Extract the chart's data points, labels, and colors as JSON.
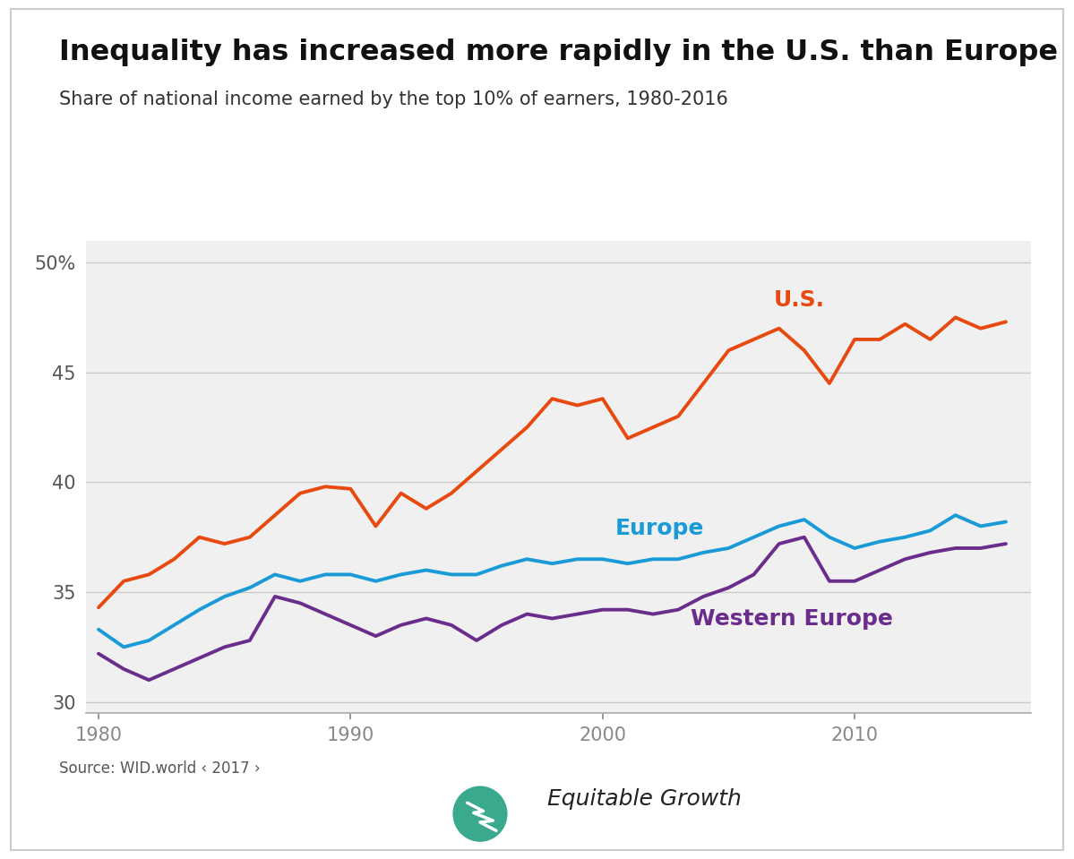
{
  "title": "Inequality has increased more rapidly in the U.S. than Europe",
  "subtitle": "Share of national income earned by the top 10% of earners, 1980-2016",
  "source": "Source: WID.world ‹ 2017 ›",
  "background_color": "#f0f0f0",
  "plot_bg_color": "#f0f0f0",
  "years": [
    1980,
    1981,
    1982,
    1983,
    1984,
    1985,
    1986,
    1987,
    1988,
    1989,
    1990,
    1991,
    1992,
    1993,
    1994,
    1995,
    1996,
    1997,
    1998,
    1999,
    2000,
    2001,
    2002,
    2003,
    2004,
    2005,
    2006,
    2007,
    2008,
    2009,
    2010,
    2011,
    2012,
    2013,
    2014,
    2015,
    2016
  ],
  "us": [
    34.3,
    35.5,
    35.8,
    36.5,
    37.5,
    37.2,
    37.5,
    38.5,
    39.5,
    39.8,
    39.7,
    38.0,
    39.5,
    38.8,
    39.5,
    40.5,
    41.5,
    42.5,
    43.8,
    43.5,
    43.8,
    42.0,
    42.5,
    43.0,
    44.5,
    46.0,
    46.5,
    47.0,
    46.0,
    44.5,
    46.5,
    46.5,
    47.2,
    46.5,
    47.5,
    47.0,
    47.3
  ],
  "europe": [
    33.3,
    32.5,
    32.8,
    33.5,
    34.2,
    34.8,
    35.2,
    35.8,
    35.5,
    35.8,
    35.8,
    35.5,
    35.8,
    36.0,
    35.8,
    35.8,
    36.2,
    36.5,
    36.3,
    36.5,
    36.5,
    36.3,
    36.5,
    36.5,
    36.8,
    37.0,
    37.5,
    38.0,
    38.3,
    37.5,
    37.0,
    37.3,
    37.5,
    37.8,
    38.5,
    38.0,
    38.2
  ],
  "western_europe": [
    32.2,
    31.5,
    31.0,
    31.5,
    32.0,
    32.5,
    32.8,
    34.8,
    34.5,
    34.0,
    33.5,
    33.0,
    33.5,
    33.8,
    33.5,
    32.8,
    33.5,
    34.0,
    33.8,
    34.0,
    34.2,
    34.2,
    34.0,
    34.2,
    34.8,
    35.2,
    35.8,
    37.2,
    37.5,
    35.5,
    35.5,
    36.0,
    36.5,
    36.8,
    37.0,
    37.0,
    37.2
  ],
  "us_color": "#e8490f",
  "europe_color": "#1a9bd7",
  "western_europe_color": "#6b2d8b",
  "ylim": [
    29.5,
    51
  ],
  "yticks": [
    30,
    35,
    40,
    45,
    50
  ],
  "xlim": [
    1979.5,
    2017
  ],
  "xticks": [
    1980,
    1990,
    2000,
    2010
  ],
  "title_fontsize": 23,
  "subtitle_fontsize": 15,
  "source_fontsize": 12,
  "tick_fontsize": 15,
  "label_fontsize": 18
}
